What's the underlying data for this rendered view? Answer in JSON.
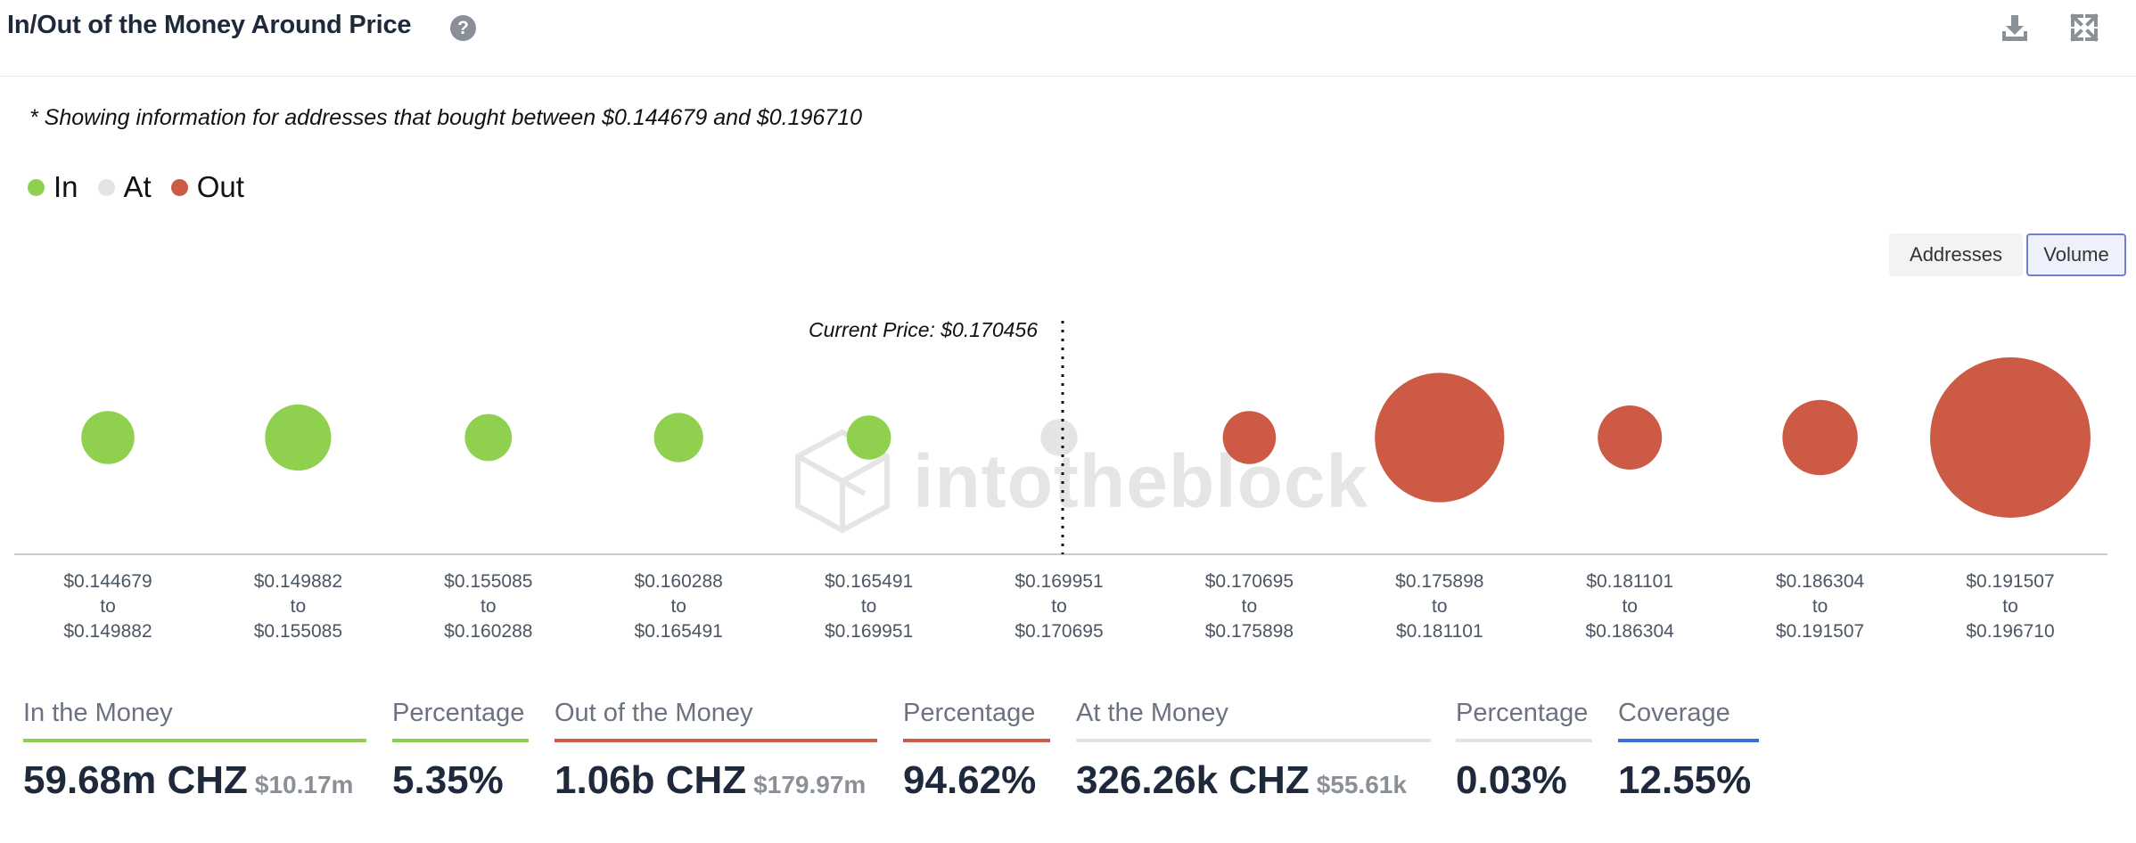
{
  "header": {
    "title": "In/Out of the Money Around Price",
    "help_icon": "question-circle-icon",
    "download_icon": "download-icon",
    "expand_icon": "expand-icon"
  },
  "note": "* Showing information for addresses that bought between $0.144679 and $0.196710",
  "legend": [
    {
      "label": "In",
      "color": "#8fd14f"
    },
    {
      "label": "At",
      "color": "#e4e4e4"
    },
    {
      "label": "Out",
      "color": "#cc5a44"
    }
  ],
  "toggle": {
    "addresses": "Addresses",
    "volume": "Volume",
    "active": "Volume"
  },
  "watermark": "intotheblock",
  "chart_data": {
    "type": "scatter",
    "current_price_label": "Current Price: $0.170456",
    "current_price_index": 5,
    "categories": [
      {
        "from": "$0.144679",
        "to": "$0.149882",
        "status": "In",
        "relative_volume": 0.11
      },
      {
        "from": "$0.149882",
        "to": "$0.155085",
        "status": "In",
        "relative_volume": 0.17
      },
      {
        "from": "$0.155085",
        "to": "$0.160288",
        "status": "In",
        "relative_volume": 0.086
      },
      {
        "from": "$0.160288",
        "to": "$0.165491",
        "status": "In",
        "relative_volume": 0.094
      },
      {
        "from": "$0.165491",
        "to": "$0.169951",
        "status": "In",
        "relative_volume": 0.076
      },
      {
        "from": "$0.169951",
        "to": "$0.170695",
        "status": "At",
        "relative_volume": 0.053
      },
      {
        "from": "$0.170695",
        "to": "$0.175898",
        "status": "Out",
        "relative_volume": 0.11
      },
      {
        "from": "$0.175898",
        "to": "$0.181101",
        "status": "Out",
        "relative_volume": 0.65
      },
      {
        "from": "$0.181101",
        "to": "$0.186304",
        "status": "Out",
        "relative_volume": 0.16
      },
      {
        "from": "$0.186304",
        "to": "$0.191507",
        "status": "Out",
        "relative_volume": 0.22
      },
      {
        "from": "$0.191507",
        "to": "$0.196710",
        "status": "Out",
        "relative_volume": 1.0
      }
    ],
    "to_word": "to",
    "colors": {
      "In": "#8fd14f",
      "At": "#e4e4e4",
      "Out": "#cc5a44"
    }
  },
  "stats": {
    "in_money": {
      "label": "In the Money",
      "value": "59.68m CHZ",
      "usd": "$10.17m",
      "color": "#8fd14f"
    },
    "in_pct": {
      "label": "Percentage",
      "value": "5.35%",
      "color": "#8fd14f"
    },
    "out_money": {
      "label": "Out of the Money",
      "value": "1.06b CHZ",
      "usd": "$179.97m",
      "color": "#cc5a44"
    },
    "out_pct": {
      "label": "Percentage",
      "value": "94.62%",
      "color": "#cc5a44"
    },
    "at_money": {
      "label": "At the Money",
      "value": "326.26k CHZ",
      "usd": "$55.61k",
      "color": "#e4e4e4"
    },
    "at_pct": {
      "label": "Percentage",
      "value": "0.03%",
      "color": "#e4e4e4"
    },
    "coverage": {
      "label": "Coverage",
      "value": "12.55%",
      "color": "#3b6fd8"
    }
  }
}
